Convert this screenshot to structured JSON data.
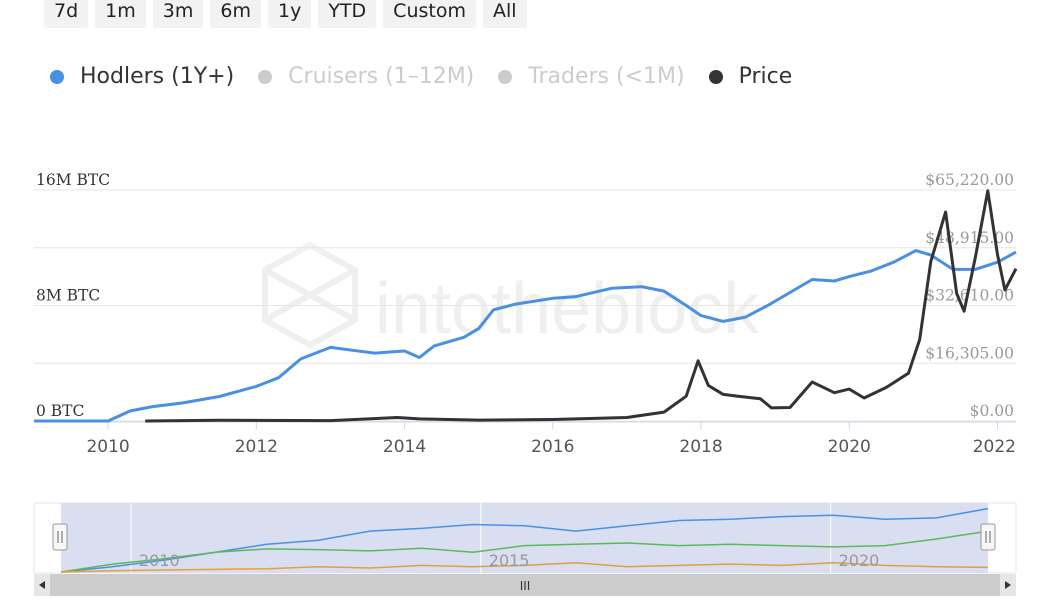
{
  "range_buttons": [
    "7d",
    "1m",
    "3m",
    "6m",
    "1y",
    "YTD",
    "Custom",
    "All"
  ],
  "legend": [
    {
      "label": "Hodlers (1Y+)",
      "color": "#4a90e2",
      "active": true
    },
    {
      "label": "Cruisers (1–12M)",
      "color": "#cccccc",
      "active": false
    },
    {
      "label": "Traders (<1M)",
      "color": "#cccccc",
      "active": false
    },
    {
      "label": "Price",
      "color": "#333333",
      "active": true
    }
  ],
  "watermark": "intotheblock",
  "chart_data": {
    "type": "line",
    "x_axis": {
      "ticks": [
        "2010",
        "2012",
        "2014",
        "2016",
        "2018",
        "2020",
        "2022"
      ],
      "range": [
        2009.0,
        2022.25
      ]
    },
    "y_left": {
      "ticks": [
        "0 BTC",
        "8M BTC",
        "16M BTC"
      ],
      "range": [
        0,
        16000000
      ]
    },
    "y_right": {
      "ticks": [
        "$0.00",
        "$16,305.00",
        "$32,610.00",
        "$48,915.00",
        "$65,220.00"
      ],
      "range": [
        0,
        65220
      ]
    },
    "series": [
      {
        "name": "Hodlers (1Y+)",
        "axis": "left",
        "color": "#4a90e2",
        "points": [
          [
            2009.0,
            0
          ],
          [
            2010.0,
            0
          ],
          [
            2010.3,
            700000
          ],
          [
            2010.6,
            1000000
          ],
          [
            2011.0,
            1250000
          ],
          [
            2011.5,
            1700000
          ],
          [
            2012.0,
            2400000
          ],
          [
            2012.3,
            3000000
          ],
          [
            2012.6,
            4300000
          ],
          [
            2013.0,
            5100000
          ],
          [
            2013.3,
            4900000
          ],
          [
            2013.6,
            4700000
          ],
          [
            2014.0,
            4850000
          ],
          [
            2014.2,
            4400000
          ],
          [
            2014.4,
            5200000
          ],
          [
            2014.8,
            5800000
          ],
          [
            2015.0,
            6400000
          ],
          [
            2015.2,
            7700000
          ],
          [
            2015.5,
            8100000
          ],
          [
            2016.0,
            8500000
          ],
          [
            2016.3,
            8600000
          ],
          [
            2016.8,
            9200000
          ],
          [
            2017.2,
            9300000
          ],
          [
            2017.5,
            9000000
          ],
          [
            2017.8,
            8000000
          ],
          [
            2018.0,
            7300000
          ],
          [
            2018.3,
            6900000
          ],
          [
            2018.6,
            7200000
          ],
          [
            2018.9,
            8000000
          ],
          [
            2019.2,
            8900000
          ],
          [
            2019.5,
            9800000
          ],
          [
            2019.8,
            9700000
          ],
          [
            2020.0,
            10000000
          ],
          [
            2020.3,
            10400000
          ],
          [
            2020.6,
            11000000
          ],
          [
            2020.9,
            11800000
          ],
          [
            2021.1,
            11500000
          ],
          [
            2021.4,
            10500000
          ],
          [
            2021.7,
            10500000
          ],
          [
            2022.0,
            11000000
          ],
          [
            2022.25,
            11700000
          ]
        ]
      },
      {
        "name": "Price",
        "axis": "right",
        "color": "#333333",
        "points": [
          [
            2010.5,
            0
          ],
          [
            2011.5,
            200
          ],
          [
            2013.0,
            100
          ],
          [
            2013.9,
            1000
          ],
          [
            2014.2,
            600
          ],
          [
            2015.0,
            250
          ],
          [
            2016.0,
            420
          ],
          [
            2017.0,
            1000
          ],
          [
            2017.5,
            2500
          ],
          [
            2017.8,
            7000
          ],
          [
            2017.96,
            17000
          ],
          [
            2018.1,
            10000
          ],
          [
            2018.3,
            7500
          ],
          [
            2018.5,
            7000
          ],
          [
            2018.8,
            6300
          ],
          [
            2018.95,
            3700
          ],
          [
            2019.2,
            3800
          ],
          [
            2019.5,
            11000
          ],
          [
            2019.8,
            8000
          ],
          [
            2020.0,
            9000
          ],
          [
            2020.2,
            6500
          ],
          [
            2020.5,
            9500
          ],
          [
            2020.8,
            13500
          ],
          [
            2020.95,
            23000
          ],
          [
            2021.1,
            45000
          ],
          [
            2021.3,
            59000
          ],
          [
            2021.45,
            36000
          ],
          [
            2021.55,
            31000
          ],
          [
            2021.7,
            46000
          ],
          [
            2021.87,
            65000
          ],
          [
            2022.0,
            47000
          ],
          [
            2022.1,
            37000
          ],
          [
            2022.25,
            43000
          ]
        ]
      }
    ]
  },
  "navigator": {
    "ticks": [
      "2010",
      "2015",
      "2020"
    ],
    "scroll_grip": "III",
    "series": [
      {
        "name": "Hodlers (1Y+)",
        "color": "#4a90e2",
        "values": [
          0,
          0.08,
          0.18,
          0.3,
          0.42,
          0.48,
          0.62,
          0.66,
          0.72,
          0.7,
          0.62,
          0.7,
          0.78,
          0.8,
          0.84,
          0.86,
          0.8,
          0.82,
          0.96
        ]
      },
      {
        "name": "Cruisers (1–12M)",
        "color": "#5cb85c",
        "values": [
          0,
          0.12,
          0.2,
          0.3,
          0.35,
          0.34,
          0.32,
          0.36,
          0.3,
          0.4,
          0.42,
          0.44,
          0.4,
          0.42,
          0.4,
          0.38,
          0.4,
          0.5,
          0.62
        ]
      },
      {
        "name": "Traders (<1M)",
        "color": "#e0a040",
        "values": [
          0,
          0.02,
          0.03,
          0.04,
          0.05,
          0.08,
          0.06,
          0.1,
          0.08,
          0.1,
          0.14,
          0.08,
          0.1,
          0.12,
          0.1,
          0.14,
          0.1,
          0.08,
          0.07
        ]
      }
    ]
  }
}
